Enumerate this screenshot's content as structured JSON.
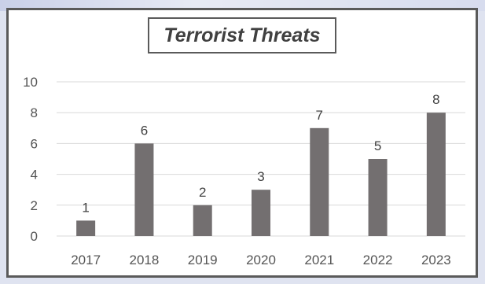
{
  "chart_data": {
    "type": "bar",
    "title": "Terrorist Threats",
    "categories": [
      "2017",
      "2018",
      "2019",
      "2020",
      "2021",
      "2022",
      "2023"
    ],
    "values": [
      1,
      6,
      2,
      3,
      7,
      5,
      8
    ],
    "ylim": [
      0,
      10
    ],
    "yticks": [
      "0",
      "2",
      "4",
      "6",
      "8",
      "10"
    ],
    "grid": true,
    "data_labels": true,
    "bar_color": "#736f70",
    "grid_color": "#d9d9d9"
  }
}
